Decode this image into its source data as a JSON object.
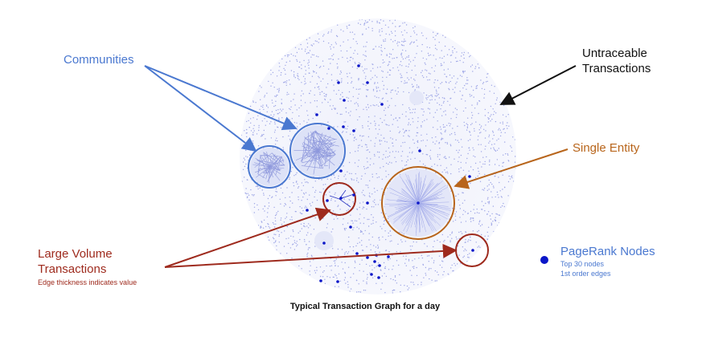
{
  "labels": {
    "communities": "Communities",
    "untraceable_line1": "Untraceable",
    "untraceable_line2": "Transactions",
    "single_entity": "Single Entity",
    "large_volume_line1": "Large Volume",
    "large_volume_line2": "Transactions",
    "large_volume_note": "Edge thickness indicates value",
    "pagerank_title": "PageRank Nodes",
    "pagerank_line1": "Top 30 nodes",
    "pagerank_line2": "1st order edges"
  },
  "caption": "Typical Transaction Graph for a day",
  "colors": {
    "community_blue": "#4a78d0",
    "single_entity_orange": "#b8651b",
    "large_volume_red": "#9e2a1d",
    "pagerank_node": "#0b16c8",
    "graph_dots": "#9ea6e6",
    "arrow_black": "#111111"
  }
}
